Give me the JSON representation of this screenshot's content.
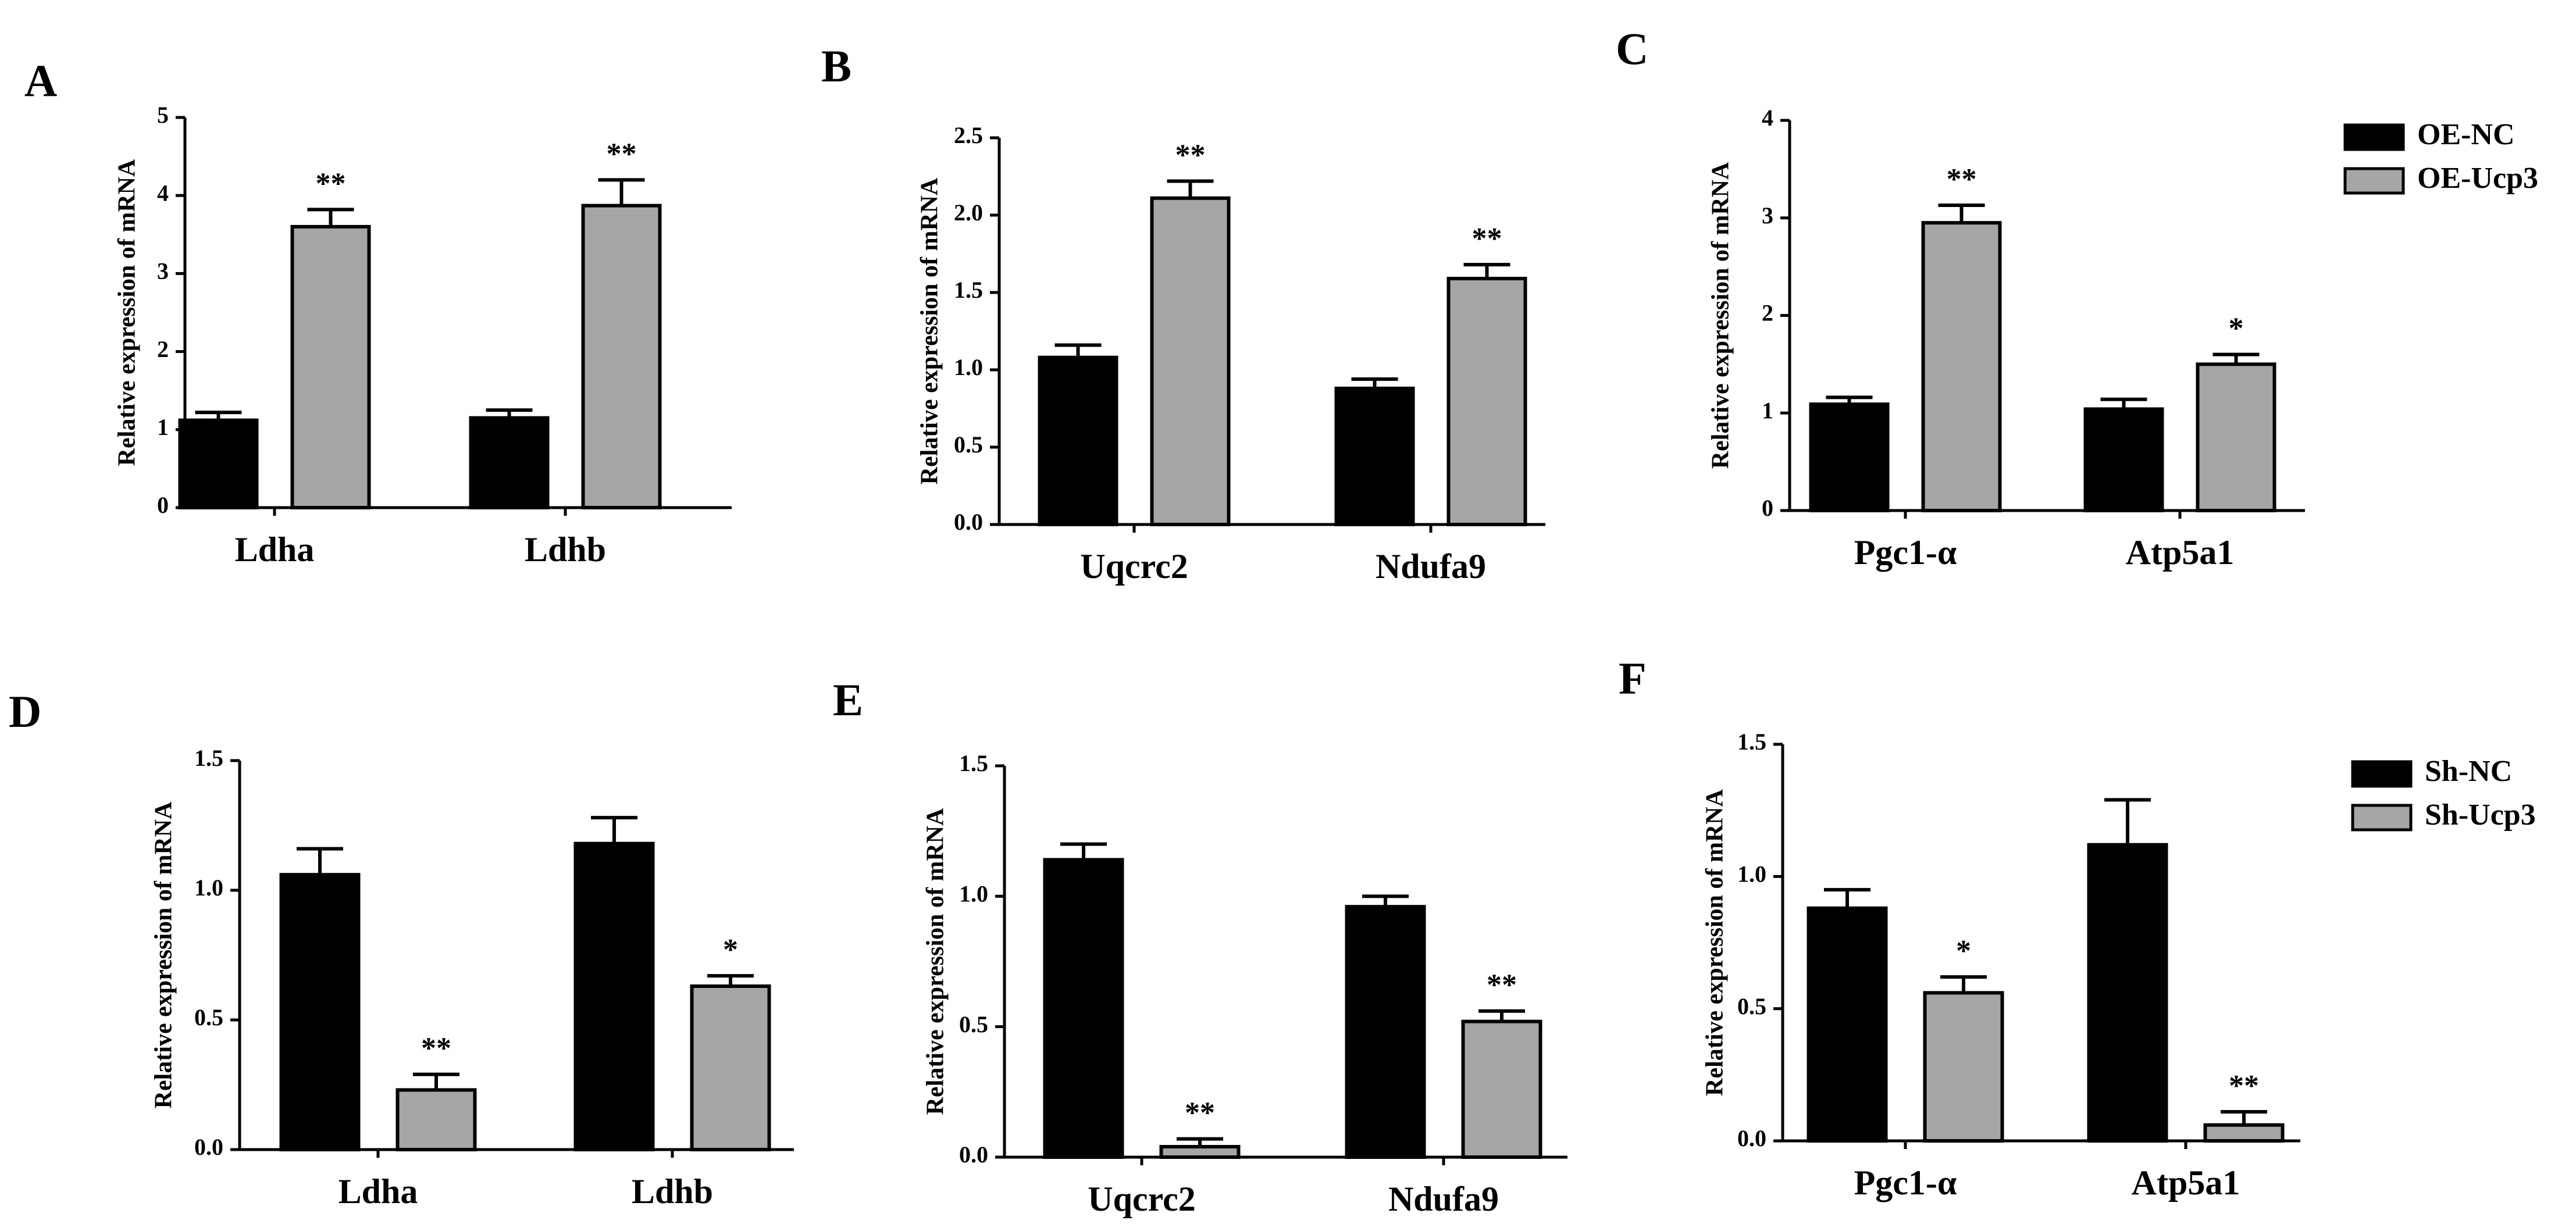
{
  "colors": {
    "control": "#000000",
    "treatment": "#a6a6a6",
    "axis": "#000000",
    "background": "#ffffff"
  },
  "legends": [
    {
      "panels": [
        "A",
        "B",
        "C"
      ],
      "items": [
        {
          "label": "OE-NC",
          "series": 0
        },
        {
          "label": "OE-Ucp3",
          "series": 1
        }
      ]
    },
    {
      "panels": [
        "D",
        "E",
        "F"
      ],
      "items": [
        {
          "label": "Sh-NC",
          "series": 0
        },
        {
          "label": "Sh-Ucp3",
          "series": 1
        }
      ]
    }
  ],
  "chart_data": [
    {
      "panel": "A",
      "type": "bar",
      "ylabel": "Relative expression of mRNA",
      "xlabel": "",
      "ylim": [
        0,
        5
      ],
      "yticks": [
        "0",
        "1",
        "2",
        "3",
        "4",
        "5"
      ],
      "categories": [
        "Ldha",
        "Ldhb"
      ],
      "series": [
        {
          "name": "OE-NC",
          "values": [
            1.12,
            1.15
          ],
          "errors": [
            0.1,
            0.1
          ],
          "sig": [
            "",
            ""
          ]
        },
        {
          "name": "OE-Ucp3",
          "values": [
            3.6,
            3.87
          ],
          "errors": [
            0.22,
            0.33
          ],
          "sig": [
            "**",
            "**"
          ]
        }
      ]
    },
    {
      "panel": "B",
      "type": "bar",
      "ylabel": "Relative expression of mRNA",
      "xlabel": "",
      "ylim": [
        0,
        2.5
      ],
      "yticks": [
        "0.0",
        "0.5",
        "1.0",
        "1.5",
        "2.0",
        "2.5"
      ],
      "categories": [
        "Uqcrc2",
        "Ndufa9"
      ],
      "series": [
        {
          "name": "OE-NC",
          "values": [
            1.08,
            0.88
          ],
          "errors": [
            0.08,
            0.06
          ],
          "sig": [
            "",
            ""
          ]
        },
        {
          "name": "OE-Ucp3",
          "values": [
            2.11,
            1.59
          ],
          "errors": [
            0.11,
            0.09
          ],
          "sig": [
            "**",
            "**"
          ]
        }
      ]
    },
    {
      "panel": "C",
      "type": "bar",
      "ylabel": "Relative expression of mRNA",
      "xlabel": "",
      "ylim": [
        0,
        4
      ],
      "yticks": [
        "0",
        "1",
        "2",
        "3",
        "4"
      ],
      "categories": [
        "Pgc1-α",
        "Atp5a1"
      ],
      "series": [
        {
          "name": "OE-NC",
          "values": [
            1.09,
            1.04
          ],
          "errors": [
            0.07,
            0.1
          ],
          "sig": [
            "",
            ""
          ]
        },
        {
          "name": "OE-Ucp3",
          "values": [
            2.95,
            1.5
          ],
          "errors": [
            0.18,
            0.1
          ],
          "sig": [
            "**",
            "*"
          ]
        }
      ]
    },
    {
      "panel": "D",
      "type": "bar",
      "ylabel": "Relative expression of mRNA",
      "xlabel": "",
      "ylim": [
        0,
        1.5
      ],
      "yticks": [
        "0.0",
        "0.5",
        "1.0",
        "1.5"
      ],
      "categories": [
        "Ldha",
        "Ldhb"
      ],
      "series": [
        {
          "name": "Sh-NC",
          "values": [
            1.06,
            1.18
          ],
          "errors": [
            0.1,
            0.1
          ],
          "sig": [
            "",
            ""
          ]
        },
        {
          "name": "Sh-Ucp3",
          "values": [
            0.23,
            0.63
          ],
          "errors": [
            0.06,
            0.04
          ],
          "sig": [
            "**",
            "*"
          ]
        }
      ]
    },
    {
      "panel": "E",
      "type": "bar",
      "ylabel": "Relative expression of mRNA",
      "xlabel": "",
      "ylim": [
        0,
        1.5
      ],
      "yticks": [
        "0.0",
        "0.5",
        "1.0",
        "1.5"
      ],
      "categories": [
        "Uqcrc2",
        "Ndufa9"
      ],
      "series": [
        {
          "name": "Sh-NC",
          "values": [
            1.14,
            0.96
          ],
          "errors": [
            0.06,
            0.04
          ],
          "sig": [
            "",
            ""
          ]
        },
        {
          "name": "Sh-Ucp3",
          "values": [
            0.04,
            0.52
          ],
          "errors": [
            0.03,
            0.04
          ],
          "sig": [
            "**",
            "**"
          ]
        }
      ]
    },
    {
      "panel": "F",
      "type": "bar",
      "ylabel": "Relative expression of mRNA",
      "xlabel": "",
      "ylim": [
        0,
        1.5
      ],
      "yticks": [
        "0.0",
        "0.5",
        "1.0",
        "1.5"
      ],
      "categories": [
        "Pgc1-α",
        "Atp5a1"
      ],
      "series": [
        {
          "name": "Sh-NC",
          "values": [
            0.88,
            1.12
          ],
          "errors": [
            0.07,
            0.17
          ],
          "sig": [
            "",
            ""
          ]
        },
        {
          "name": "Sh-Ucp3",
          "values": [
            0.56,
            0.06
          ],
          "errors": [
            0.06,
            0.05
          ],
          "sig": [
            "*",
            "**"
          ]
        }
      ]
    }
  ]
}
